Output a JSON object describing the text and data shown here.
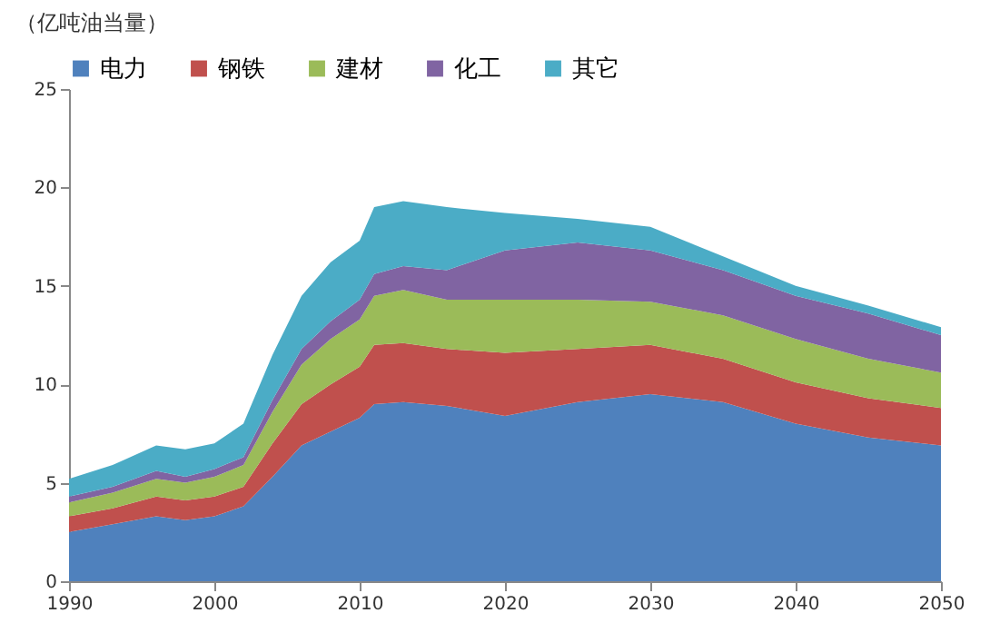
{
  "chart_data": {
    "type": "area",
    "stacked": true,
    "ylabel": "（亿吨油当量）",
    "x": [
      1990,
      1993,
      1996,
      1998,
      2000,
      2002,
      2004,
      2006,
      2008,
      2010,
      2011,
      2013,
      2016,
      2020,
      2025,
      2030,
      2035,
      2040,
      2045,
      2050
    ],
    "series": [
      {
        "name": "电力",
        "color": "#4f81bd",
        "values": [
          2.5,
          2.9,
          3.3,
          3.1,
          3.3,
          3.8,
          5.3,
          6.9,
          7.6,
          8.3,
          9.0,
          9.1,
          8.9,
          8.4,
          9.1,
          9.5,
          9.1,
          8.0,
          7.3,
          6.9
        ]
      },
      {
        "name": "钢铁",
        "color": "#c0504d",
        "values": [
          0.8,
          0.8,
          1.0,
          1.0,
          1.0,
          1.0,
          1.7,
          2.1,
          2.4,
          2.6,
          3.0,
          3.0,
          2.9,
          3.2,
          2.7,
          2.5,
          2.2,
          2.1,
          2.0,
          1.9
        ]
      },
      {
        "name": "建材",
        "color": "#9bbb59",
        "values": [
          0.7,
          0.8,
          0.9,
          0.9,
          1.0,
          1.1,
          1.6,
          2.0,
          2.3,
          2.4,
          2.5,
          2.7,
          2.5,
          2.7,
          2.5,
          2.2,
          2.2,
          2.2,
          2.0,
          1.8
        ]
      },
      {
        "name": "化工",
        "color": "#8064a2",
        "values": [
          0.3,
          0.3,
          0.4,
          0.3,
          0.4,
          0.4,
          0.6,
          0.8,
          0.9,
          1.0,
          1.1,
          1.2,
          1.5,
          2.5,
          2.9,
          2.6,
          2.3,
          2.2,
          2.3,
          1.9
        ]
      },
      {
        "name": "其它",
        "color": "#4bacc6",
        "values": [
          0.9,
          1.1,
          1.3,
          1.4,
          1.3,
          1.7,
          2.3,
          2.7,
          3.0,
          3.0,
          3.4,
          3.3,
          3.2,
          1.9,
          1.2,
          1.2,
          0.7,
          0.5,
          0.4,
          0.4
        ]
      }
    ],
    "xlim": [
      1990,
      2050
    ],
    "xticks": [
      1990,
      2000,
      2010,
      2020,
      2030,
      2040,
      2050
    ],
    "ylim": [
      0,
      25
    ],
    "yticks": [
      0,
      5,
      10,
      15,
      20,
      25
    ],
    "grid": false,
    "legend": "top"
  }
}
